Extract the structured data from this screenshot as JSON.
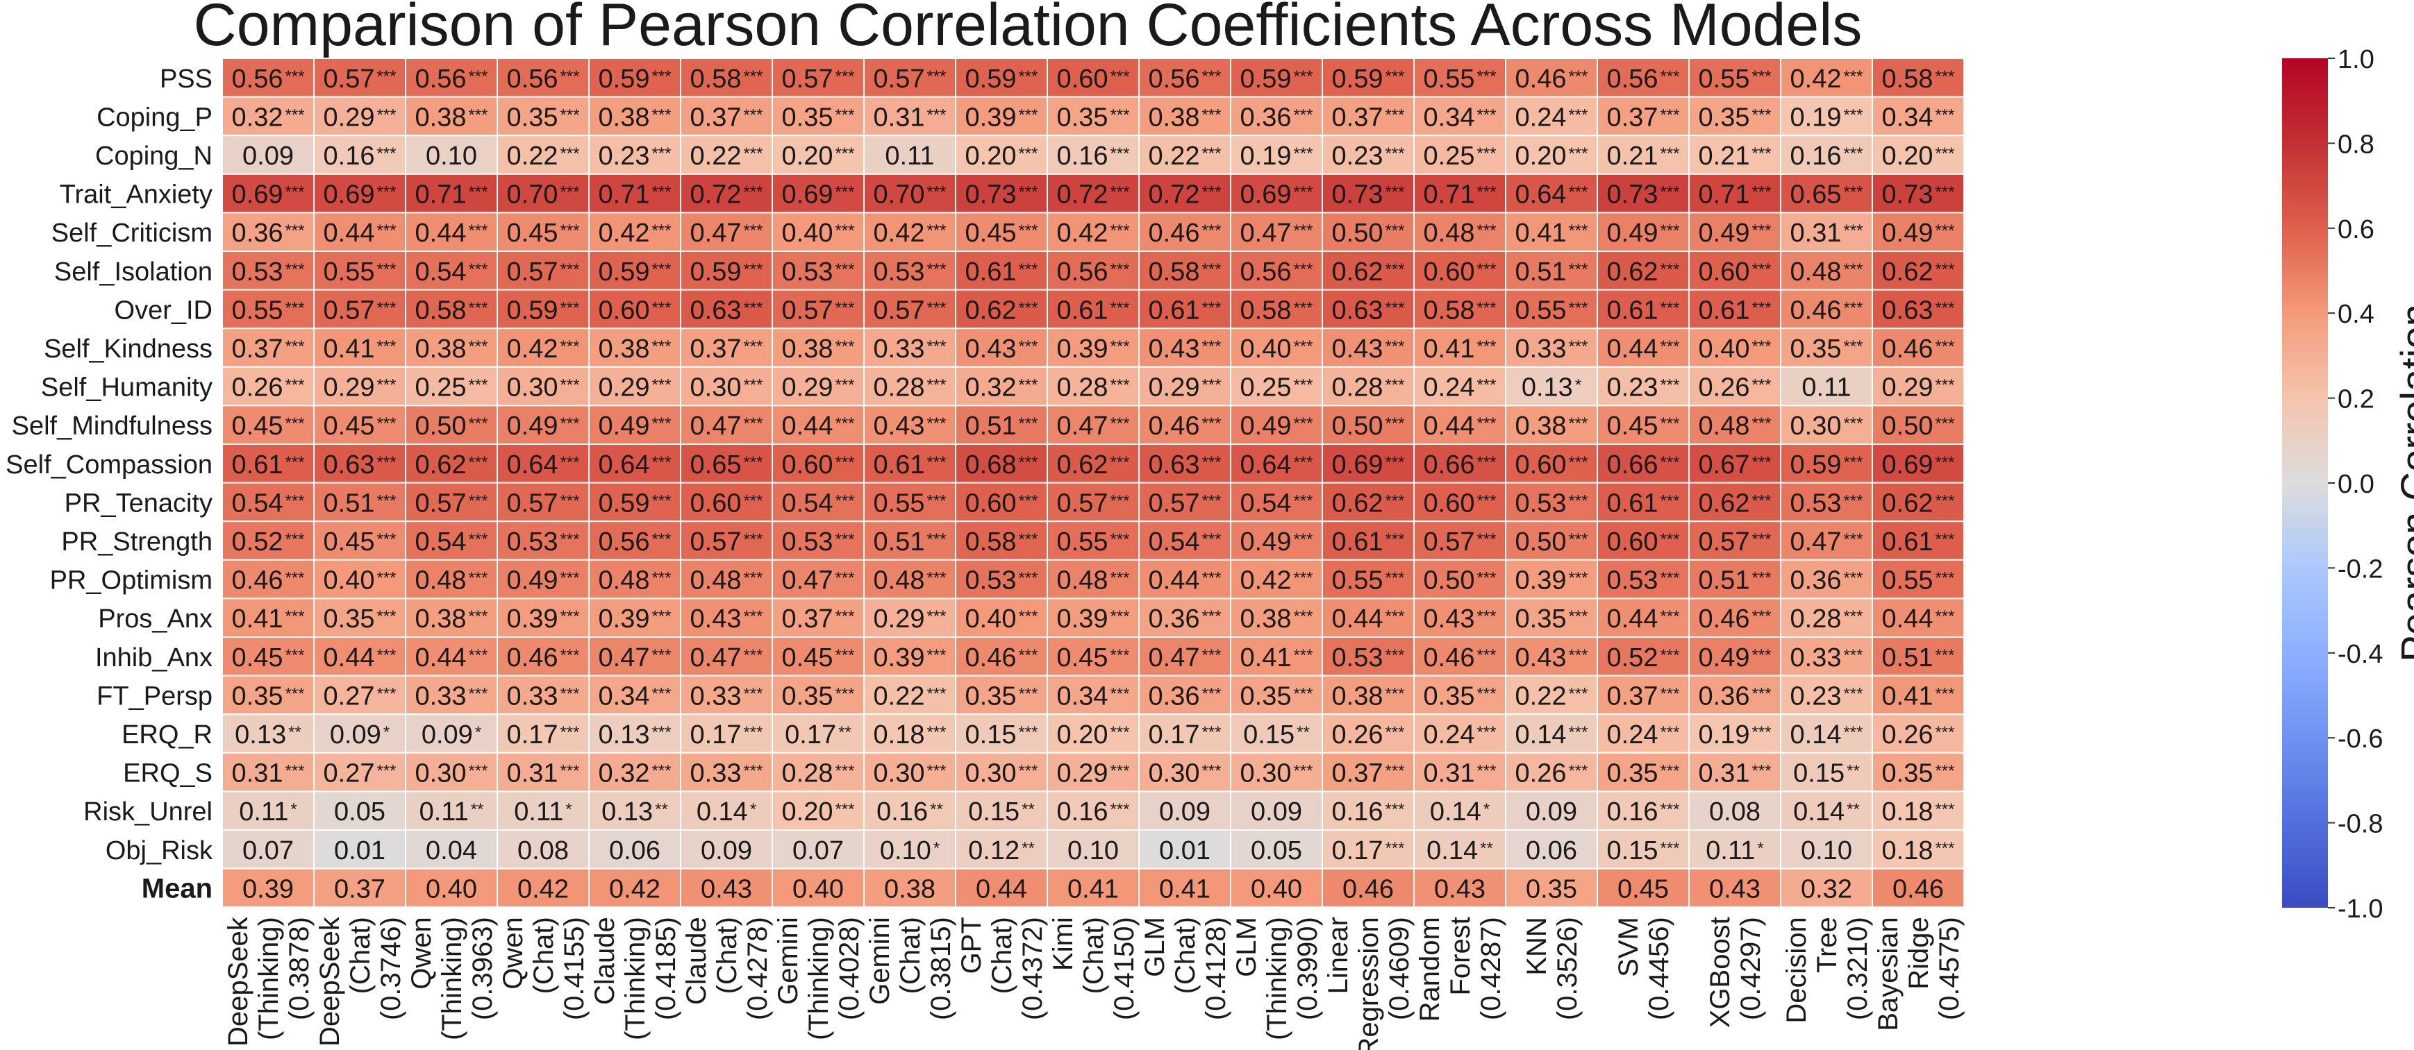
{
  "chart_data": {
    "type": "heatmap",
    "title": "Comparison of Pearson Correlation Coefficients Across Models",
    "colorbar_label": "Pearson Correlation",
    "color_range": [
      -1.0,
      1.0
    ],
    "colormap": "coolwarm",
    "colorbar_ticks": [
      "-1.0",
      "-0.8",
      "-0.6",
      "-0.4",
      "-0.2",
      "0.0",
      "0.2",
      "0.4",
      "0.6",
      "0.8",
      "1.0"
    ],
    "rows": [
      "PSS",
      "Coping_P",
      "Coping_N",
      "Trait_Anxiety",
      "Self_Criticism",
      "Self_Isolation",
      "Over_ID",
      "Self_Kindness",
      "Self_Humanity",
      "Self_Mindfulness",
      "Self_Compassion",
      "PR_Tenacity",
      "PR_Strength",
      "PR_Optimism",
      "Pros_Anx",
      "Inhib_Anx",
      "FT_Persp",
      "ERQ_R",
      "ERQ_S",
      "Risk_Unrel",
      "Obj_Risk",
      "Mean"
    ],
    "columns": [
      [
        "DeepSeek",
        "(Thinking)",
        "(0.3878)"
      ],
      [
        "DeepSeek",
        "(Chat)",
        "(0.3746)"
      ],
      [
        "Qwen",
        "(Thinking)",
        "(0.3963)"
      ],
      [
        "Qwen",
        "(Chat)",
        "(0.4155)"
      ],
      [
        "Claude",
        "(Thinking)",
        "(0.4185)"
      ],
      [
        "Claude",
        "(Chat)",
        "(0.4278)"
      ],
      [
        "Gemini",
        "(Thinking)",
        "(0.4028)"
      ],
      [
        "Gemini",
        "(Chat)",
        "(0.3815)"
      ],
      [
        "GPT",
        "(Chat)",
        "(0.4372)"
      ],
      [
        "Kimi",
        "(Chat)",
        "(0.4150)"
      ],
      [
        "GLM",
        "(Chat)",
        "(0.4128)"
      ],
      [
        "GLM",
        "(Thinking)",
        "(0.3990)"
      ],
      [
        "Linear",
        "Regression",
        "(0.4609)"
      ],
      [
        "Random",
        "Forest",
        "(0.4287)"
      ],
      [
        "KNN",
        "(0.3526)"
      ],
      [
        "SVM",
        "(0.4456)"
      ],
      [
        "XGBoost",
        "(0.4297)"
      ],
      [
        "Decision",
        "Tree",
        "(0.3210)"
      ],
      [
        "Bayesian",
        "Ridge",
        "(0.4575)"
      ]
    ],
    "values": [
      [
        0.56,
        0.57,
        0.56,
        0.56,
        0.59,
        0.58,
        0.57,
        0.57,
        0.59,
        0.6,
        0.56,
        0.59,
        0.59,
        0.55,
        0.46,
        0.56,
        0.55,
        0.42,
        0.58
      ],
      [
        0.32,
        0.29,
        0.38,
        0.35,
        0.38,
        0.37,
        0.35,
        0.31,
        0.39,
        0.35,
        0.38,
        0.36,
        0.37,
        0.34,
        0.24,
        0.37,
        0.35,
        0.19,
        0.34
      ],
      [
        0.09,
        0.16,
        0.1,
        0.22,
        0.23,
        0.22,
        0.2,
        0.11,
        0.2,
        0.16,
        0.22,
        0.19,
        0.23,
        0.25,
        0.2,
        0.21,
        0.21,
        0.16,
        0.2
      ],
      [
        0.69,
        0.69,
        0.71,
        0.7,
        0.71,
        0.72,
        0.69,
        0.7,
        0.73,
        0.72,
        0.72,
        0.69,
        0.73,
        0.71,
        0.64,
        0.73,
        0.71,
        0.65,
        0.73
      ],
      [
        0.36,
        0.44,
        0.44,
        0.45,
        0.42,
        0.47,
        0.4,
        0.42,
        0.45,
        0.42,
        0.46,
        0.47,
        0.5,
        0.48,
        0.41,
        0.49,
        0.49,
        0.31,
        0.49
      ],
      [
        0.53,
        0.55,
        0.54,
        0.57,
        0.59,
        0.59,
        0.53,
        0.53,
        0.61,
        0.56,
        0.58,
        0.56,
        0.62,
        0.6,
        0.51,
        0.62,
        0.6,
        0.48,
        0.62
      ],
      [
        0.55,
        0.57,
        0.58,
        0.59,
        0.6,
        0.63,
        0.57,
        0.57,
        0.62,
        0.61,
        0.61,
        0.58,
        0.63,
        0.58,
        0.55,
        0.61,
        0.61,
        0.46,
        0.63
      ],
      [
        0.37,
        0.41,
        0.38,
        0.42,
        0.38,
        0.37,
        0.38,
        0.33,
        0.43,
        0.39,
        0.43,
        0.4,
        0.43,
        0.41,
        0.33,
        0.44,
        0.4,
        0.35,
        0.46
      ],
      [
        0.26,
        0.29,
        0.25,
        0.3,
        0.29,
        0.3,
        0.29,
        0.28,
        0.32,
        0.28,
        0.29,
        0.25,
        0.28,
        0.24,
        0.13,
        0.23,
        0.26,
        0.11,
        0.29
      ],
      [
        0.45,
        0.45,
        0.5,
        0.49,
        0.49,
        0.47,
        0.44,
        0.43,
        0.51,
        0.47,
        0.46,
        0.49,
        0.5,
        0.44,
        0.38,
        0.45,
        0.48,
        0.3,
        0.5
      ],
      [
        0.61,
        0.63,
        0.62,
        0.64,
        0.64,
        0.65,
        0.6,
        0.61,
        0.68,
        0.62,
        0.63,
        0.64,
        0.69,
        0.66,
        0.6,
        0.66,
        0.67,
        0.59,
        0.69
      ],
      [
        0.54,
        0.51,
        0.57,
        0.57,
        0.59,
        0.6,
        0.54,
        0.55,
        0.6,
        0.57,
        0.57,
        0.54,
        0.62,
        0.6,
        0.53,
        0.61,
        0.62,
        0.53,
        0.62
      ],
      [
        0.52,
        0.45,
        0.54,
        0.53,
        0.56,
        0.57,
        0.53,
        0.51,
        0.58,
        0.55,
        0.54,
        0.49,
        0.61,
        0.57,
        0.5,
        0.6,
        0.57,
        0.47,
        0.61
      ],
      [
        0.46,
        0.4,
        0.48,
        0.49,
        0.48,
        0.48,
        0.47,
        0.48,
        0.53,
        0.48,
        0.44,
        0.42,
        0.55,
        0.5,
        0.39,
        0.53,
        0.51,
        0.36,
        0.55
      ],
      [
        0.41,
        0.35,
        0.38,
        0.39,
        0.39,
        0.43,
        0.37,
        0.29,
        0.4,
        0.39,
        0.36,
        0.38,
        0.44,
        0.43,
        0.35,
        0.44,
        0.46,
        0.28,
        0.44
      ],
      [
        0.45,
        0.44,
        0.44,
        0.46,
        0.47,
        0.47,
        0.45,
        0.39,
        0.46,
        0.45,
        0.47,
        0.41,
        0.53,
        0.46,
        0.43,
        0.52,
        0.49,
        0.33,
        0.51
      ],
      [
        0.35,
        0.27,
        0.33,
        0.33,
        0.34,
        0.33,
        0.35,
        0.22,
        0.35,
        0.34,
        0.36,
        0.35,
        0.38,
        0.35,
        0.22,
        0.37,
        0.36,
        0.23,
        0.41
      ],
      [
        0.13,
        0.09,
        0.09,
        0.17,
        0.13,
        0.17,
        0.17,
        0.18,
        0.15,
        0.2,
        0.17,
        0.15,
        0.26,
        0.24,
        0.14,
        0.24,
        0.19,
        0.14,
        0.26
      ],
      [
        0.31,
        0.27,
        0.3,
        0.31,
        0.32,
        0.33,
        0.28,
        0.3,
        0.3,
        0.29,
        0.3,
        0.3,
        0.37,
        0.31,
        0.26,
        0.35,
        0.31,
        0.15,
        0.35
      ],
      [
        0.11,
        0.05,
        0.11,
        0.11,
        0.13,
        0.14,
        0.2,
        0.16,
        0.15,
        0.16,
        0.09,
        0.09,
        0.16,
        0.14,
        0.09,
        0.16,
        0.08,
        0.14,
        0.18
      ],
      [
        0.07,
        0.01,
        0.04,
        0.08,
        0.06,
        0.09,
        0.07,
        0.1,
        0.12,
        0.1,
        0.01,
        0.05,
        0.17,
        0.14,
        0.06,
        0.15,
        0.11,
        0.1,
        0.18
      ],
      [
        0.39,
        0.37,
        0.4,
        0.42,
        0.42,
        0.43,
        0.4,
        0.38,
        0.44,
        0.41,
        0.41,
        0.4,
        0.46,
        0.43,
        0.35,
        0.45,
        0.43,
        0.32,
        0.46
      ]
    ],
    "significance": [
      [
        "***",
        "***",
        "***",
        "***",
        "***",
        "***",
        "***",
        "***",
        "***",
        "***",
        "***",
        "***",
        "***",
        "***",
        "***",
        "***",
        "***",
        "***",
        "***"
      ],
      [
        "***",
        "***",
        "***",
        "***",
        "***",
        "***",
        "***",
        "***",
        "***",
        "***",
        "***",
        "***",
        "***",
        "***",
        "***",
        "***",
        "***",
        "***",
        "***"
      ],
      [
        "",
        "***",
        "",
        "***",
        "***",
        "***",
        "***",
        "",
        "***",
        "***",
        "***",
        "***",
        "***",
        "***",
        "***",
        "***",
        "***",
        "***",
        "***"
      ],
      [
        "***",
        "***",
        "***",
        "***",
        "***",
        "***",
        "***",
        "***",
        "***",
        "***",
        "***",
        "***",
        "***",
        "***",
        "***",
        "***",
        "***",
        "***",
        "***"
      ],
      [
        "***",
        "***",
        "***",
        "***",
        "***",
        "***",
        "***",
        "***",
        "***",
        "***",
        "***",
        "***",
        "***",
        "***",
        "***",
        "***",
        "***",
        "***",
        "***"
      ],
      [
        "***",
        "***",
        "***",
        "***",
        "***",
        "***",
        "***",
        "***",
        "***",
        "***",
        "***",
        "***",
        "***",
        "***",
        "***",
        "***",
        "***",
        "***",
        "***"
      ],
      [
        "***",
        "***",
        "***",
        "***",
        "***",
        "***",
        "***",
        "***",
        "***",
        "***",
        "***",
        "***",
        "***",
        "***",
        "***",
        "***",
        "***",
        "***",
        "***"
      ],
      [
        "***",
        "***",
        "***",
        "***",
        "***",
        "***",
        "***",
        "***",
        "***",
        "***",
        "***",
        "***",
        "***",
        "***",
        "***",
        "***",
        "***",
        "***",
        "***"
      ],
      [
        "***",
        "***",
        "***",
        "***",
        "***",
        "***",
        "***",
        "***",
        "***",
        "***",
        "***",
        "***",
        "***",
        "***",
        "*",
        "***",
        "***",
        "",
        "***"
      ],
      [
        "***",
        "***",
        "***",
        "***",
        "***",
        "***",
        "***",
        "***",
        "***",
        "***",
        "***",
        "***",
        "***",
        "***",
        "***",
        "***",
        "***",
        "***",
        "***"
      ],
      [
        "***",
        "***",
        "***",
        "***",
        "***",
        "***",
        "***",
        "***",
        "***",
        "***",
        "***",
        "***",
        "***",
        "***",
        "***",
        "***",
        "***",
        "***",
        "***"
      ],
      [
        "***",
        "***",
        "***",
        "***",
        "***",
        "***",
        "***",
        "***",
        "***",
        "***",
        "***",
        "***",
        "***",
        "***",
        "***",
        "***",
        "***",
        "***",
        "***"
      ],
      [
        "***",
        "***",
        "***",
        "***",
        "***",
        "***",
        "***",
        "***",
        "***",
        "***",
        "***",
        "***",
        "***",
        "***",
        "***",
        "***",
        "***",
        "***",
        "***"
      ],
      [
        "***",
        "***",
        "***",
        "***",
        "***",
        "***",
        "***",
        "***",
        "***",
        "***",
        "***",
        "***",
        "***",
        "***",
        "***",
        "***",
        "***",
        "***",
        "***"
      ],
      [
        "***",
        "***",
        "***",
        "***",
        "***",
        "***",
        "***",
        "***",
        "***",
        "***",
        "***",
        "***",
        "***",
        "***",
        "***",
        "***",
        "***",
        "***",
        "***"
      ],
      [
        "***",
        "***",
        "***",
        "***",
        "***",
        "***",
        "***",
        "***",
        "***",
        "***",
        "***",
        "***",
        "***",
        "***",
        "***",
        "***",
        "***",
        "***",
        "***"
      ],
      [
        "***",
        "***",
        "***",
        "***",
        "***",
        "***",
        "***",
        "***",
        "***",
        "***",
        "***",
        "***",
        "***",
        "***",
        "***",
        "***",
        "***",
        "***",
        "***"
      ],
      [
        "**",
        "*",
        "*",
        "***",
        "***",
        "***",
        "**",
        "***",
        "***",
        "***",
        "***",
        "**",
        "***",
        "***",
        "***",
        "***",
        "***",
        "***",
        "***"
      ],
      [
        "***",
        "***",
        "***",
        "***",
        "***",
        "***",
        "***",
        "***",
        "***",
        "***",
        "***",
        "***",
        "***",
        "***",
        "***",
        "***",
        "***",
        "**",
        "***"
      ],
      [
        "*",
        "",
        "**",
        "*",
        "**",
        "*",
        "***",
        "**",
        "**",
        "***",
        "",
        "",
        "***",
        "*",
        "",
        "***",
        "",
        "**",
        "***"
      ],
      [
        "",
        "",
        "",
        "",
        "",
        "",
        "",
        "*",
        "**",
        "",
        "",
        "",
        "***",
        "**",
        "",
        "***",
        "*",
        "",
        "***"
      ],
      [
        "",
        "",
        "",
        "",
        "",
        "",
        "",
        "",
        "",
        "",
        "",
        "",
        "",
        "",
        "",
        "",
        "",
        "",
        ""
      ]
    ],
    "bold_rows": [
      "Mean"
    ]
  }
}
